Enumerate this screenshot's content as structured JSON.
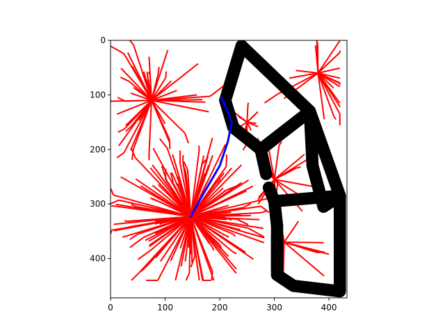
{
  "chart_data": {
    "type": "line",
    "title": "",
    "xlabel": "",
    "ylabel": "",
    "xlim": [
      0,
      433
    ],
    "ylim": [
      472,
      0
    ],
    "y_inverted": true,
    "grid": false,
    "legend": "none",
    "x_ticks": [
      {
        "value": 0,
        "label": "0"
      },
      {
        "value": 100,
        "label": "100"
      },
      {
        "value": 200,
        "label": "200"
      },
      {
        "value": 300,
        "label": "300"
      },
      {
        "value": 400,
        "label": "400"
      }
    ],
    "y_ticks": [
      {
        "value": 0,
        "label": "0"
      },
      {
        "value": 100,
        "label": "100"
      },
      {
        "value": 200,
        "label": "200"
      },
      {
        "value": 300,
        "label": "300"
      },
      {
        "value": 400,
        "label": "400"
      }
    ],
    "colors": {
      "tree": "#ff0000",
      "path": "#0000ff",
      "obstacles": "#000000"
    },
    "obstacles": [
      {
        "name": "upper-polygon",
        "points": [
          [
            210,
            110
          ],
          [
            240,
            10
          ],
          [
            365,
            130
          ],
          [
            275,
            200
          ],
          [
            225,
            160
          ],
          [
            210,
            110
          ]
        ],
        "width": 14
      },
      {
        "name": "lower-polygon",
        "points": [
          [
            365,
            130
          ],
          [
            420,
            285
          ],
          [
            390,
            305
          ],
          [
            370,
            230
          ],
          [
            365,
            130
          ]
        ],
        "width": 14
      },
      {
        "name": "connector-upper",
        "points": [
          [
            275,
            200
          ],
          [
            285,
            245
          ]
        ],
        "width": 14
      },
      {
        "name": "connector-middle",
        "points": [
          [
            290,
            270
          ],
          [
            300,
            295
          ],
          [
            305,
            340
          ]
        ],
        "width": 14
      },
      {
        "name": "bottom-polygon",
        "points": [
          [
            305,
            340
          ],
          [
            305,
            430
          ],
          [
            335,
            450
          ],
          [
            420,
            460
          ],
          [
            420,
            285
          ],
          [
            300,
            295
          ]
        ],
        "width": 14
      },
      {
        "name": "lower-left-stub",
        "points": [
          [
            305,
            360
          ],
          [
            305,
            420
          ]
        ],
        "width": 14
      }
    ],
    "tree_hubs": [
      {
        "x": 147,
        "y": 323,
        "branches": 120,
        "reach": 150,
        "min_x": 0,
        "max_x": 290
      },
      {
        "x": 75,
        "y": 110,
        "branches": 40,
        "reach": 110,
        "min_x": 0,
        "max_x": 220
      },
      {
        "x": 300,
        "y": 255,
        "branches": 18,
        "reach": 90,
        "min_x": 270,
        "max_x": 380
      },
      {
        "x": 318,
        "y": 370,
        "branches": 20,
        "reach": 110,
        "min_x": 300,
        "max_x": 400
      },
      {
        "x": 380,
        "y": 60,
        "branches": 20,
        "reach": 110,
        "min_x": 250,
        "max_x": 420
      },
      {
        "x": 250,
        "y": 150,
        "branches": 12,
        "reach": 40,
        "min_x": 225,
        "max_x": 270
      }
    ],
    "path": {
      "name": "",
      "x": [
        147,
        165,
        200,
        215,
        222,
        218,
        210,
        203
      ],
      "y": [
        323,
        290,
        230,
        185,
        150,
        140,
        120,
        105
      ]
    }
  }
}
